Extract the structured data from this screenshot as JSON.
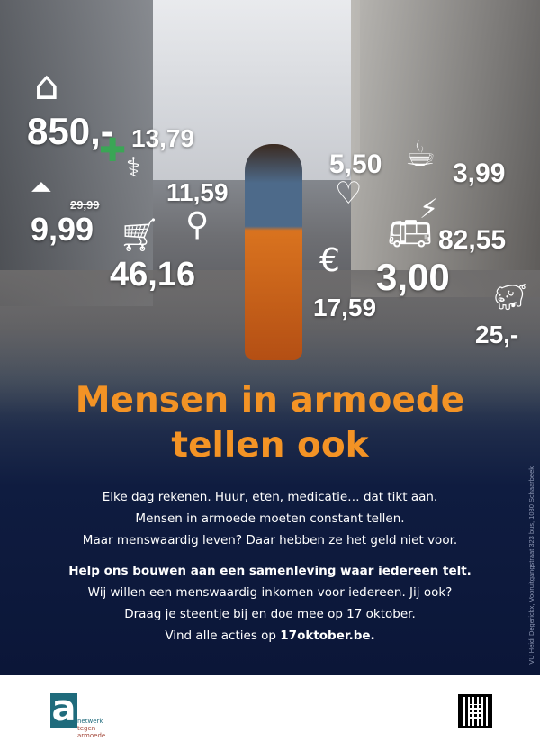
{
  "prices": {
    "house": "850,-",
    "pharmacy": "13,79",
    "skirt_old": "29,99",
    "skirt": "9,99",
    "doctor": "11,59",
    "shopping": "46,16",
    "clothes": "5,50",
    "coffee": "3,99",
    "energy": "82,55",
    "bus": "3,00",
    "payment": "17,59",
    "savings": "25,-"
  },
  "title": {
    "line1": "Mensen in armoede",
    "line2": "tellen ook"
  },
  "body": {
    "p1": [
      "Elke dag rekenen. Huur, eten, medicatie… dat tikt aan.",
      "Mensen in armoede moeten constant tellen.",
      "Maar menswaardig leven? Daar hebben ze het geld niet voor."
    ],
    "p2_bold": "Help ons bouwen aan een samenleving waar iedereen telt.",
    "p2": [
      "Wij willen een menswaardig inkomen voor iedereen. Jij ook?",
      "Draag je steentje bij en doe mee op 17 oktober."
    ],
    "p2_last_prefix": "Vind alle acties op ",
    "p2_link": "17oktober.be."
  },
  "vu": "VU Heidi Degerickx, Vooruitgangstraat 323 bus, 1030 Schaarbeek",
  "logo": {
    "letter": "a",
    "line1": "netwerk",
    "line2": "tegen armoede"
  },
  "colors": {
    "title": "#f39325",
    "background": "#0b1638",
    "logo": "#1f6b7c"
  }
}
